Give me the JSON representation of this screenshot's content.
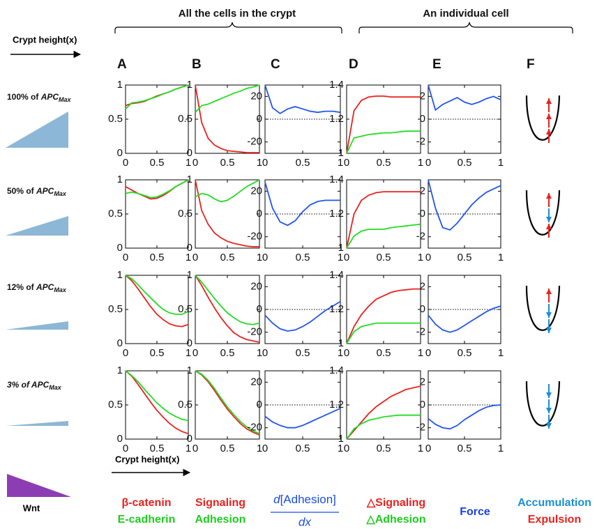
{
  "header": {
    "group1": "All the cells in the crypt",
    "group2": "An individual cell",
    "axis_label": "Crypt height(x)"
  },
  "panel_letters": [
    "A",
    "B",
    "C",
    "D",
    "E",
    "F"
  ],
  "rows": [
    {
      "label": "100% of ",
      "label_em": "APC",
      "label_sub": "Max",
      "italic": false
    },
    {
      "label": "50% of ",
      "label_em": "APC",
      "label_sub": "Max",
      "italic": false
    },
    {
      "label": "12% of ",
      "label_em": "APC",
      "label_sub": "Max",
      "italic": false
    },
    {
      "label": "3% of ",
      "label_em": "APC",
      "label_sub": "Max",
      "italic": true
    }
  ],
  "chart_data": [
    {
      "type": "line",
      "x": [
        0,
        0.1,
        0.2,
        0.3,
        0.4,
        0.5,
        0.6,
        0.7,
        0.8,
        0.9,
        1
      ],
      "xlim": [
        0,
        1
      ],
      "xticks": [
        0,
        0.5,
        1
      ],
      "ylim": [
        0,
        1
      ],
      "yticks": [
        0,
        0.5,
        1
      ],
      "zero_line": false,
      "series": [
        {
          "color": "#e8221d",
          "values": [
            0.7,
            0.73,
            0.74,
            0.76,
            0.8,
            0.84,
            0.87,
            0.9,
            0.94,
            0.97,
            1.0
          ]
        },
        {
          "color": "#22dd22",
          "values": [
            0.65,
            0.74,
            0.75,
            0.77,
            0.8,
            0.83,
            0.87,
            0.9,
            0.94,
            0.97,
            1.0
          ]
        }
      ]
    },
    {
      "type": "line",
      "x": [
        0,
        0.1,
        0.2,
        0.3,
        0.4,
        0.5,
        0.6,
        0.7,
        0.8,
        0.9,
        1
      ],
      "xlim": [
        0,
        1
      ],
      "xticks": [
        0,
        0.5,
        1
      ],
      "ylim": [
        0,
        1
      ],
      "yticks": [
        0,
        0.5,
        1
      ],
      "zero_line": false,
      "series": [
        {
          "color": "#e8221d",
          "values": [
            1.0,
            0.45,
            0.22,
            0.12,
            0.07,
            0.04,
            0.03,
            0.02,
            0.01,
            0.01,
            0.01
          ]
        },
        {
          "color": "#22dd22",
          "values": [
            0.6,
            0.7,
            0.72,
            0.76,
            0.8,
            0.84,
            0.88,
            0.91,
            0.95,
            0.97,
            1.0
          ]
        }
      ]
    },
    {
      "type": "line",
      "x": [
        0,
        0.1,
        0.2,
        0.3,
        0.4,
        0.5,
        0.6,
        0.7,
        0.8,
        0.9,
        1
      ],
      "xlim": [
        0,
        1
      ],
      "xticks": [
        0,
        0.5,
        1
      ],
      "ylim": [
        -30,
        30
      ],
      "yticks": [
        -20,
        0,
        20
      ],
      "zero_line": true,
      "series": [
        {
          "color": "#2255ee",
          "values": [
            30,
            10,
            5,
            9,
            11,
            9,
            7,
            6,
            7,
            7,
            6
          ]
        }
      ]
    },
    {
      "type": "line",
      "x": [
        0,
        0.1,
        0.2,
        0.3,
        0.4,
        0.5,
        0.6,
        0.7,
        0.8,
        0.9,
        1
      ],
      "xlim": [
        0,
        1
      ],
      "xticks": [
        0,
        0.5,
        1
      ],
      "ylim": [
        1,
        1.4
      ],
      "yticks": [
        1,
        1.2,
        1.4
      ],
      "zero_line": false,
      "series": [
        {
          "color": "#e8221d",
          "values": [
            1.0,
            1.25,
            1.31,
            1.33,
            1.335,
            1.335,
            1.33,
            1.33,
            1.33,
            1.33,
            1.33
          ]
        },
        {
          "color": "#22dd22",
          "values": [
            1.0,
            1.09,
            1.1,
            1.11,
            1.115,
            1.12,
            1.12,
            1.125,
            1.13,
            1.13,
            1.13
          ]
        }
      ]
    },
    {
      "type": "line",
      "x": [
        0,
        0.1,
        0.2,
        0.3,
        0.4,
        0.5,
        0.6,
        0.7,
        0.8,
        0.9,
        1
      ],
      "xlim": [
        0,
        1
      ],
      "xticks": [
        0,
        0.5,
        1
      ],
      "ylim": [
        -3,
        3
      ],
      "yticks": [
        -2,
        0,
        2
      ],
      "zero_line": true,
      "series": [
        {
          "color": "#2255ee",
          "values": [
            3,
            0.8,
            1.3,
            1.6,
            1.9,
            1.5,
            1.3,
            1.5,
            1.8,
            2,
            1.7
          ]
        }
      ]
    },
    {
      "type": "line",
      "x": [
        0,
        0.1,
        0.2,
        0.3,
        0.4,
        0.5,
        0.6,
        0.7,
        0.8,
        0.9,
        1
      ],
      "xlim": [
        0,
        1
      ],
      "xticks": [
        0,
        0.5,
        1
      ],
      "ylim": [
        0,
        1
      ],
      "yticks": [
        0,
        0.5,
        1
      ],
      "zero_line": false,
      "series": [
        {
          "color": "#e8221d",
          "values": [
            0.9,
            0.85,
            0.8,
            0.76,
            0.72,
            0.73,
            0.77,
            0.83,
            0.9,
            0.95,
            1.0
          ]
        },
        {
          "color": "#22dd22",
          "values": [
            0.8,
            0.82,
            0.8,
            0.77,
            0.74,
            0.75,
            0.79,
            0.84,
            0.9,
            0.95,
            1.0
          ]
        }
      ]
    },
    {
      "type": "line",
      "x": [
        0,
        0.1,
        0.2,
        0.3,
        0.4,
        0.5,
        0.6,
        0.7,
        0.8,
        0.9,
        1
      ],
      "xlim": [
        0,
        1
      ],
      "xticks": [
        0,
        0.5,
        1
      ],
      "ylim": [
        0,
        1
      ],
      "yticks": [
        0,
        0.5,
        1
      ],
      "zero_line": false,
      "series": [
        {
          "color": "#e8221d",
          "values": [
            1.0,
            0.55,
            0.35,
            0.22,
            0.15,
            0.1,
            0.07,
            0.05,
            0.03,
            0.02,
            0.02
          ]
        },
        {
          "color": "#22dd22",
          "values": [
            0.75,
            0.8,
            0.78,
            0.72,
            0.68,
            0.7,
            0.76,
            0.83,
            0.9,
            0.95,
            1.0
          ]
        }
      ]
    },
    {
      "type": "line",
      "x": [
        0,
        0.1,
        0.2,
        0.3,
        0.4,
        0.5,
        0.6,
        0.7,
        0.8,
        0.9,
        1
      ],
      "xlim": [
        0,
        1
      ],
      "xticks": [
        0,
        0.5,
        1
      ],
      "ylim": [
        -30,
        30
      ],
      "yticks": [
        -20,
        0,
        20
      ],
      "zero_line": true,
      "series": [
        {
          "color": "#2255ee",
          "values": [
            28,
            5,
            -7,
            -10,
            -6,
            2,
            8,
            11,
            12,
            12,
            12
          ]
        }
      ]
    },
    {
      "type": "line",
      "x": [
        0,
        0.1,
        0.2,
        0.3,
        0.4,
        0.5,
        0.6,
        0.7,
        0.8,
        0.9,
        1
      ],
      "xlim": [
        0,
        1
      ],
      "xticks": [
        0,
        0.5,
        1
      ],
      "ylim": [
        1,
        1.4
      ],
      "yticks": [
        1,
        1.2,
        1.4
      ],
      "zero_line": false,
      "series": [
        {
          "color": "#e8221d",
          "values": [
            1.0,
            1.2,
            1.28,
            1.31,
            1.325,
            1.33,
            1.33,
            1.33,
            1.33,
            1.33,
            1.33
          ]
        },
        {
          "color": "#22dd22",
          "values": [
            1.0,
            1.07,
            1.1,
            1.11,
            1.11,
            1.11,
            1.12,
            1.125,
            1.13,
            1.135,
            1.14
          ]
        }
      ]
    },
    {
      "type": "line",
      "x": [
        0,
        0.1,
        0.2,
        0.3,
        0.4,
        0.5,
        0.6,
        0.7,
        0.8,
        0.9,
        1
      ],
      "xlim": [
        0,
        1
      ],
      "xticks": [
        0,
        0.5,
        1
      ],
      "ylim": [
        -3,
        3
      ],
      "yticks": [
        -2,
        0,
        2
      ],
      "zero_line": true,
      "series": [
        {
          "color": "#2255ee",
          "values": [
            3,
            0.5,
            -1.2,
            -1.4,
            -0.8,
            0,
            0.8,
            1.4,
            1.9,
            2.2,
            2.5
          ]
        }
      ]
    },
    {
      "type": "line",
      "x": [
        0,
        0.1,
        0.2,
        0.3,
        0.4,
        0.5,
        0.6,
        0.7,
        0.8,
        0.9,
        1
      ],
      "xlim": [
        0,
        1
      ],
      "xticks": [
        0,
        0.5,
        1
      ],
      "ylim": [
        0,
        1
      ],
      "yticks": [
        0,
        0.5,
        1
      ],
      "zero_line": false,
      "series": [
        {
          "color": "#e8221d",
          "values": [
            1.0,
            0.92,
            0.8,
            0.67,
            0.54,
            0.43,
            0.35,
            0.29,
            0.26,
            0.25,
            0.28
          ]
        },
        {
          "color": "#22dd22",
          "values": [
            1.0,
            0.95,
            0.86,
            0.76,
            0.67,
            0.58,
            0.5,
            0.45,
            0.43,
            0.43,
            0.47
          ]
        }
      ]
    },
    {
      "type": "line",
      "x": [
        0,
        0.1,
        0.2,
        0.3,
        0.4,
        0.5,
        0.6,
        0.7,
        0.8,
        0.9,
        1
      ],
      "xlim": [
        0,
        1
      ],
      "xticks": [
        0,
        0.5,
        1
      ],
      "ylim": [
        0,
        1
      ],
      "yticks": [
        0,
        0.5,
        1
      ],
      "zero_line": false,
      "series": [
        {
          "color": "#e8221d",
          "values": [
            1.0,
            0.85,
            0.68,
            0.52,
            0.38,
            0.26,
            0.16,
            0.1,
            0.06,
            0.04,
            0.02
          ]
        },
        {
          "color": "#22dd22",
          "values": [
            1.0,
            0.9,
            0.78,
            0.66,
            0.55,
            0.45,
            0.38,
            0.32,
            0.29,
            0.28,
            0.3
          ]
        }
      ]
    },
    {
      "type": "line",
      "x": [
        0,
        0.1,
        0.2,
        0.3,
        0.4,
        0.5,
        0.6,
        0.7,
        0.8,
        0.9,
        1
      ],
      "xlim": [
        0,
        1
      ],
      "xticks": [
        0,
        0.5,
        1
      ],
      "ylim": [
        -30,
        30
      ],
      "yticks": [
        -20,
        0,
        20
      ],
      "zero_line": true,
      "series": [
        {
          "color": "#2255ee",
          "values": [
            -5,
            -12,
            -17,
            -19,
            -18,
            -15,
            -11,
            -6,
            -1,
            3,
            7
          ]
        }
      ]
    },
    {
      "type": "line",
      "x": [
        0,
        0.1,
        0.2,
        0.3,
        0.4,
        0.5,
        0.6,
        0.7,
        0.8,
        0.9,
        1
      ],
      "xlim": [
        0,
        1
      ],
      "xticks": [
        0,
        0.5,
        1
      ],
      "ylim": [
        1,
        1.4
      ],
      "yticks": [
        1,
        1.2,
        1.4
      ],
      "zero_line": false,
      "series": [
        {
          "color": "#e8221d",
          "values": [
            1.0,
            1.1,
            1.17,
            1.22,
            1.26,
            1.28,
            1.3,
            1.31,
            1.315,
            1.32,
            1.32
          ]
        },
        {
          "color": "#22dd22",
          "values": [
            1.0,
            1.07,
            1.1,
            1.11,
            1.12,
            1.12,
            1.12,
            1.12,
            1.12,
            1.12,
            1.12
          ]
        }
      ]
    },
    {
      "type": "line",
      "x": [
        0,
        0.1,
        0.2,
        0.3,
        0.4,
        0.5,
        0.6,
        0.7,
        0.8,
        0.9,
        1
      ],
      "xlim": [
        0,
        1
      ],
      "xticks": [
        0,
        0.5,
        1
      ],
      "ylim": [
        -3,
        3
      ],
      "yticks": [
        -2,
        0,
        2
      ],
      "zero_line": true,
      "series": [
        {
          "color": "#2255ee",
          "values": [
            -0.5,
            -1.3,
            -1.8,
            -2.0,
            -1.8,
            -1.4,
            -1,
            -0.6,
            -0.2,
            0.1,
            0.3
          ]
        }
      ]
    },
    {
      "type": "line",
      "x": [
        0,
        0.1,
        0.2,
        0.3,
        0.4,
        0.5,
        0.6,
        0.7,
        0.8,
        0.9,
        1
      ],
      "xlim": [
        0,
        1
      ],
      "xticks": [
        0,
        0.5,
        1
      ],
      "ylim": [
        0,
        1
      ],
      "yticks": [
        0,
        0.5,
        1
      ],
      "zero_line": false,
      "series": [
        {
          "color": "#e8221d",
          "values": [
            1.0,
            0.92,
            0.8,
            0.67,
            0.54,
            0.42,
            0.32,
            0.23,
            0.16,
            0.11,
            0.08
          ]
        },
        {
          "color": "#22dd22",
          "values": [
            1.0,
            0.93,
            0.84,
            0.73,
            0.63,
            0.53,
            0.45,
            0.38,
            0.33,
            0.29,
            0.27
          ]
        }
      ]
    },
    {
      "type": "line",
      "x": [
        0,
        0.1,
        0.2,
        0.3,
        0.4,
        0.5,
        0.6,
        0.7,
        0.8,
        0.9,
        1
      ],
      "xlim": [
        0,
        1
      ],
      "xticks": [
        0,
        0.5,
        1
      ],
      "ylim": [
        0,
        1
      ],
      "yticks": [
        0,
        0.5,
        1
      ],
      "zero_line": false,
      "series": [
        {
          "color": "#e8221d",
          "values": [
            1.0,
            0.94,
            0.84,
            0.71,
            0.57,
            0.44,
            0.33,
            0.23,
            0.15,
            0.1,
            0.06
          ]
        },
        {
          "color": "#22dd22",
          "values": [
            1.0,
            0.95,
            0.86,
            0.74,
            0.6,
            0.47,
            0.36,
            0.26,
            0.18,
            0.12,
            0.08
          ]
        }
      ]
    },
    {
      "type": "line",
      "x": [
        0,
        0.1,
        0.2,
        0.3,
        0.4,
        0.5,
        0.6,
        0.7,
        0.8,
        0.9,
        1
      ],
      "xlim": [
        0,
        1
      ],
      "xticks": [
        0,
        0.5,
        1
      ],
      "ylim": [
        -30,
        30
      ],
      "yticks": [
        -20,
        0,
        20
      ],
      "zero_line": true,
      "series": [
        {
          "color": "#2255ee",
          "values": [
            -10,
            -15,
            -18,
            -20,
            -20,
            -18,
            -15,
            -12,
            -9,
            -6,
            -3
          ]
        }
      ]
    },
    {
      "type": "line",
      "x": [
        0,
        0.1,
        0.2,
        0.3,
        0.4,
        0.5,
        0.6,
        0.7,
        0.8,
        0.9,
        1
      ],
      "xlim": [
        0,
        1
      ],
      "xticks": [
        0,
        0.5,
        1
      ],
      "ylim": [
        1,
        1.4
      ],
      "yticks": [
        1,
        1.2,
        1.4
      ],
      "zero_line": false,
      "series": [
        {
          "color": "#e8221d",
          "values": [
            1.0,
            1.05,
            1.1,
            1.15,
            1.19,
            1.22,
            1.25,
            1.27,
            1.29,
            1.3,
            1.31
          ]
        },
        {
          "color": "#22dd22",
          "values": [
            1.0,
            1.06,
            1.09,
            1.11,
            1.12,
            1.13,
            1.135,
            1.14,
            1.14,
            1.14,
            1.14
          ]
        }
      ]
    },
    {
      "type": "line",
      "x": [
        0,
        0.1,
        0.2,
        0.3,
        0.4,
        0.5,
        0.6,
        0.7,
        0.8,
        0.9,
        1
      ],
      "xlim": [
        0,
        1
      ],
      "xticks": [
        0,
        0.5,
        1
      ],
      "ylim": [
        -3,
        3
      ],
      "yticks": [
        -2,
        0,
        2
      ],
      "zero_line": true,
      "series": [
        {
          "color": "#2255ee",
          "values": [
            -1.2,
            -1.7,
            -2.0,
            -2.1,
            -1.8,
            -1.3,
            -0.9,
            -0.5,
            -0.2,
            -0.05,
            0
          ]
        }
      ]
    }
  ],
  "footer": {
    "wnt": "Wnt",
    "axis_label": "Crypt height(x)"
  },
  "legend": {
    "col_a": [
      {
        "text": "β-catenin",
        "color": "#e8221d"
      },
      {
        "text": "E-cadherin",
        "color": "#1fcc1f"
      }
    ],
    "col_b": [
      {
        "text": "Signaling",
        "color": "#e8221d"
      },
      {
        "text": "Adhesion",
        "color": "#1fcc1f"
      }
    ],
    "fraction": {
      "d": "d",
      "body": "[Adhesion]",
      "den": "dx",
      "color": "#1a4fe0"
    },
    "col_d": [
      {
        "text": "△Signaling",
        "color": "#e8221d"
      },
      {
        "text": "△Adhesion",
        "color": "#1fcc1f"
      }
    ],
    "col_e": {
      "text": "Force",
      "color": "#1a3fe8"
    },
    "col_f": [
      {
        "text": "Accumulation",
        "color": "#1a8fd6"
      },
      {
        "text": "Expulsion",
        "color": "#e8221d"
      }
    ]
  }
}
